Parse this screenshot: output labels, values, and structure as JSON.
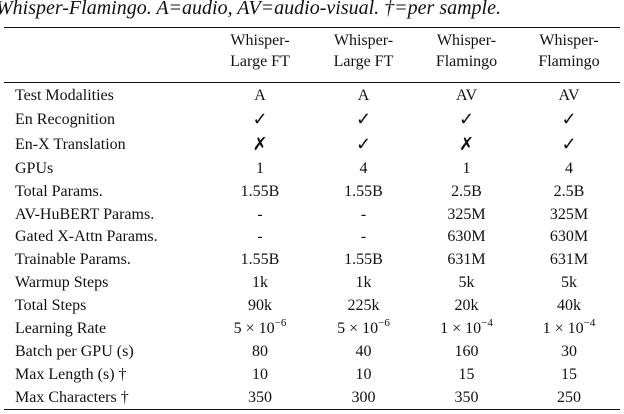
{
  "caption": "Whisper-Flamingo. A=audio, AV=audio-visual. †=per sample.",
  "columns": [
    {
      "line1": "Whisper-",
      "line2": "Large FT"
    },
    {
      "line1": "Whisper-",
      "line2": "Large FT"
    },
    {
      "line1": "Whisper-",
      "line2": "Flamingo"
    },
    {
      "line1": "Whisper-",
      "line2": "Flamingo"
    }
  ],
  "rows": [
    {
      "label": "Test Modalities",
      "values": [
        "A",
        "A",
        "AV",
        "AV"
      ]
    },
    {
      "label": "En Recognition",
      "values": [
        "✓",
        "✓",
        "✓",
        "✓"
      ]
    },
    {
      "label": "En-X Translation",
      "values": [
        "✗",
        "✓",
        "✗",
        "✓"
      ]
    },
    {
      "label": "GPUs",
      "values": [
        "1",
        "4",
        "1",
        "4"
      ]
    },
    {
      "label": "Total Params.",
      "values": [
        "1.55B",
        "1.55B",
        "2.5B",
        "2.5B"
      ]
    },
    {
      "label": "AV-HuBERT Params.",
      "values": [
        "-",
        "-",
        "325M",
        "325M"
      ]
    },
    {
      "label": "Gated X-Attn Params.",
      "values": [
        "-",
        "-",
        "630M",
        "630M"
      ]
    },
    {
      "label": "Trainable Params.",
      "values": [
        "1.55B",
        "1.55B",
        "631M",
        "631M"
      ]
    },
    {
      "label": "Warmup Steps",
      "values": [
        "1k",
        "1k",
        "5k",
        "5k"
      ]
    },
    {
      "label": "Total Steps",
      "values": [
        "90k",
        "225k",
        "20k",
        "40k"
      ]
    },
    {
      "label": "Learning Rate",
      "values": [
        "5 × 10",
        "5 × 10",
        "1 × 10",
        "1 × 10"
      ],
      "exponents": [
        "−6",
        "−6",
        "−4",
        "−4"
      ]
    },
    {
      "label": "Batch per GPU (s)",
      "values": [
        "80",
        "40",
        "160",
        "30"
      ]
    },
    {
      "label": "Max Length (s) †",
      "values": [
        "10",
        "10",
        "15",
        "15"
      ]
    },
    {
      "label": "Max Characters †",
      "values": [
        "350",
        "300",
        "350",
        "250"
      ]
    }
  ]
}
